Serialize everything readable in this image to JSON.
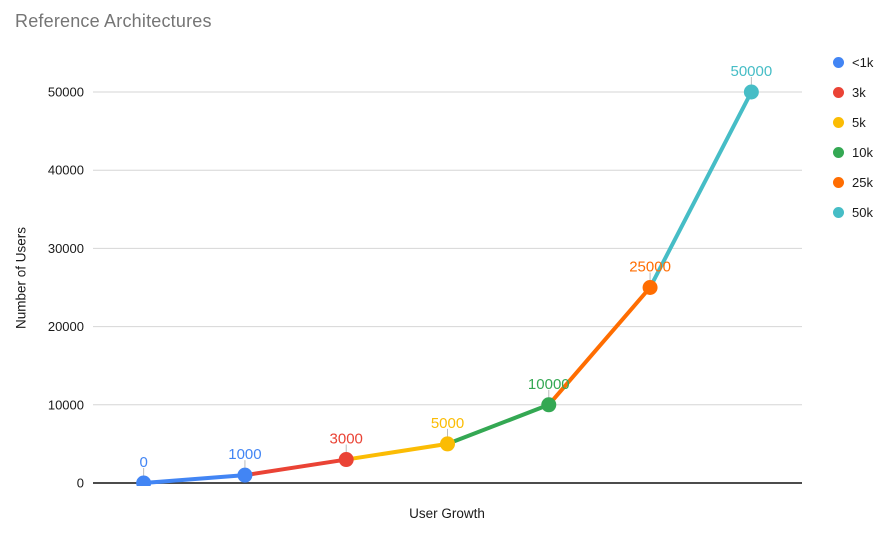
{
  "chart_data": {
    "type": "line",
    "title": "Reference Architectures",
    "xlabel": "User Growth",
    "ylabel": "Number of Users",
    "ylim": [
      0,
      50000
    ],
    "yticks": [
      0,
      10000,
      20000,
      30000,
      40000,
      50000
    ],
    "ytick_labels": [
      "0",
      "10000",
      "20000",
      "30000",
      "40000",
      "50000"
    ],
    "x_tick_labels": [],
    "grid": true,
    "legend_position": "right",
    "legend": [
      {
        "label": "<1k",
        "color": "#4285F4"
      },
      {
        "label": "3k",
        "color": "#EA4335"
      },
      {
        "label": "5k",
        "color": "#FBBC04"
      },
      {
        "label": "10k",
        "color": "#34A853"
      },
      {
        "label": "25k",
        "color": "#FF6D01"
      },
      {
        "label": "50k",
        "color": "#46BDC6"
      }
    ],
    "points": [
      {
        "index": 0,
        "value": 0,
        "label": "0",
        "series": "<1k",
        "color": "#4285F4"
      },
      {
        "index": 1,
        "value": 1000,
        "label": "1000",
        "series": "<1k",
        "color": "#4285F4"
      },
      {
        "index": 2,
        "value": 3000,
        "label": "3000",
        "series": "3k",
        "color": "#EA4335"
      },
      {
        "index": 3,
        "value": 5000,
        "label": "5000",
        "series": "5k",
        "color": "#FBBC04"
      },
      {
        "index": 4,
        "value": 10000,
        "label": "10000",
        "series": "10k",
        "color": "#34A853"
      },
      {
        "index": 5,
        "value": 25000,
        "label": "25000",
        "series": "25k",
        "color": "#FF6D01"
      },
      {
        "index": 6,
        "value": 50000,
        "label": "50000",
        "series": "50k",
        "color": "#46BDC6"
      }
    ],
    "segments": [
      {
        "from": 0,
        "to": 1,
        "color": "#4285F4"
      },
      {
        "from": 1,
        "to": 2,
        "color": "#EA4335"
      },
      {
        "from": 2,
        "to": 3,
        "color": "#FBBC04"
      },
      {
        "from": 3,
        "to": 4,
        "color": "#34A853"
      },
      {
        "from": 4,
        "to": 5,
        "color": "#FF6D01"
      },
      {
        "from": 5,
        "to": 6,
        "color": "#46BDC6"
      }
    ],
    "colors": {
      "title": "#757575",
      "axis_text": "#1a1a1a",
      "grid": "#d6d6d6",
      "baseline": "#333333",
      "annotation_stem": "#bbbbbb"
    }
  }
}
